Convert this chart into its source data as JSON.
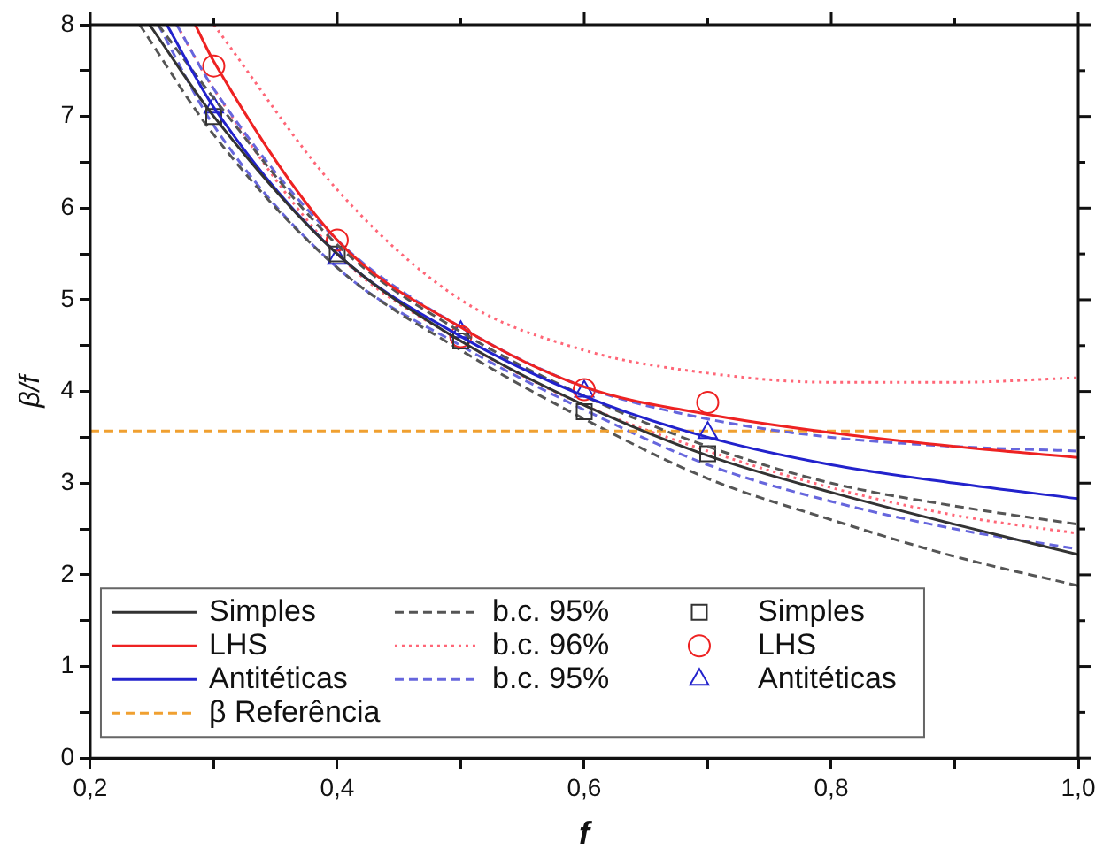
{
  "chart_data": {
    "type": "line",
    "xlabel": "f",
    "ylabel": "β/f",
    "xlim": [
      0.2,
      1.0
    ],
    "ylim": [
      0,
      8
    ],
    "xticks": [
      {
        "value": 0.2,
        "label": "0,2"
      },
      {
        "value": 0.3,
        "label": null
      },
      {
        "value": 0.4,
        "label": "0,4"
      },
      {
        "value": 0.5,
        "label": null
      },
      {
        "value": 0.6,
        "label": "0,6"
      },
      {
        "value": 0.7,
        "label": null
      },
      {
        "value": 0.8,
        "label": "0,8"
      },
      {
        "value": 0.9,
        "label": null
      },
      {
        "value": 1.0,
        "label": "1,0"
      }
    ],
    "yticks": [
      0,
      {
        "value": 0.5,
        "label": null
      },
      1,
      {
        "value": 1.5,
        "label": null
      },
      2,
      {
        "value": 2.5,
        "label": null
      },
      3,
      {
        "value": 3.5,
        "label": null
      },
      4,
      {
        "value": 4.5,
        "label": null
      },
      5,
      {
        "value": 5.5,
        "label": null
      },
      6,
      {
        "value": 6.5,
        "label": null
      },
      7,
      {
        "value": 7.5,
        "label": null
      },
      8
    ],
    "grid": false,
    "legend": "bottom left",
    "series": [
      {
        "name": "Simples",
        "color": "#333333",
        "x": [
          0.248,
          0.3,
          0.4,
          0.5,
          0.6,
          0.7,
          0.8,
          0.9,
          1.0
        ],
        "values": [
          8,
          7.0,
          5.5,
          4.55,
          3.85,
          3.3,
          2.9,
          2.55,
          2.22
        ]
      },
      {
        "name": "LHS",
        "color": "#ee2222",
        "x": [
          0.285,
          0.3,
          0.4,
          0.5,
          0.6,
          0.7,
          0.8,
          0.9,
          1.0
        ],
        "values": [
          8,
          7.6,
          5.65,
          4.7,
          4.05,
          3.75,
          3.55,
          3.4,
          3.28
        ]
      },
      {
        "name": "Antitéticas",
        "color": "#2222cc",
        "x": [
          0.262,
          0.3,
          0.4,
          0.5,
          0.6,
          0.7,
          0.8,
          0.9,
          1.0
        ],
        "values": [
          8,
          7.1,
          5.5,
          4.6,
          3.95,
          3.5,
          3.2,
          3.0,
          2.83
        ]
      },
      {
        "name": "b.c. 95%",
        "color": "#555555",
        "line_style": "dashed",
        "x": [
          0.255,
          0.3,
          0.4,
          0.5,
          0.6,
          0.7,
          0.8,
          0.9,
          1.0
        ],
        "values": [
          8,
          7.2,
          5.6,
          4.65,
          3.95,
          3.4,
          3.0,
          2.75,
          2.55
        ]
      },
      {
        "name": "b.c. 96%",
        "color": "#ff6677",
        "line_style": "dotted",
        "x": [
          0.3,
          0.4,
          0.5,
          0.6,
          0.7,
          0.8,
          0.9,
          1.0
        ],
        "values": [
          8,
          6.2,
          5.0,
          4.45,
          4.2,
          4.1,
          4.1,
          4.15
        ]
      },
      {
        "name": "b.c. 95%",
        "color": "#6666dd",
        "line_style": "dashed",
        "x": [
          0.27,
          0.3,
          0.4,
          0.5,
          0.6,
          0.7,
          0.8,
          0.9,
          1.0
        ],
        "values": [
          8,
          7.3,
          5.65,
          4.7,
          4.05,
          3.7,
          3.5,
          3.4,
          3.35
        ]
      },
      {
        "name": "Simples",
        "type": "scatter",
        "marker": "square",
        "color": "#333333",
        "x": [
          0.3,
          0.4,
          0.5,
          0.6,
          0.7
        ],
        "values": [
          7.0,
          5.5,
          4.55,
          3.78,
          3.32
        ]
      },
      {
        "name": "LHS",
        "type": "scatter",
        "marker": "circle",
        "color": "#ee2222",
        "x": [
          0.3,
          0.4,
          0.5,
          0.6,
          0.7
        ],
        "values": [
          7.55,
          5.65,
          4.6,
          4.02,
          3.88
        ]
      },
      {
        "name": "Antitéticas",
        "type": "scatter",
        "marker": "triangle",
        "color": "#2222cc",
        "x": [
          0.3,
          0.4,
          0.5,
          0.6,
          0.7
        ],
        "values": [
          7.1,
          5.45,
          4.65,
          4.0,
          3.55
        ]
      },
      {
        "name": "β Referência",
        "color": "#f0a030",
        "line_style": "dashed",
        "x": [
          0.2,
          1.0
        ],
        "values": [
          3.57,
          3.57
        ]
      },
      {
        "color": "#555555",
        "line_style": "dashed",
        "x": [
          0.24,
          0.3,
          0.4,
          0.5,
          0.6,
          0.7,
          0.8,
          0.9,
          1.0
        ],
        "values": [
          8,
          6.8,
          5.35,
          4.45,
          3.7,
          3.05,
          2.6,
          2.2,
          1.88
        ]
      },
      {
        "color": "#ff6677",
        "line_style": "dotted",
        "x": [
          0.27,
          0.3,
          0.4,
          0.5,
          0.6,
          0.7,
          0.8,
          0.9,
          1.0
        ],
        "values": [
          8,
          7.3,
          5.5,
          4.55,
          3.85,
          3.35,
          2.95,
          2.65,
          2.45
        ]
      },
      {
        "color": "#6666dd",
        "line_style": "dashed",
        "x": [
          0.255,
          0.3,
          0.4,
          0.5,
          0.6,
          0.7,
          0.8,
          0.9,
          1.0
        ],
        "values": [
          8,
          6.9,
          5.35,
          4.5,
          3.8,
          3.2,
          2.8,
          2.5,
          2.28
        ]
      }
    ]
  }
}
